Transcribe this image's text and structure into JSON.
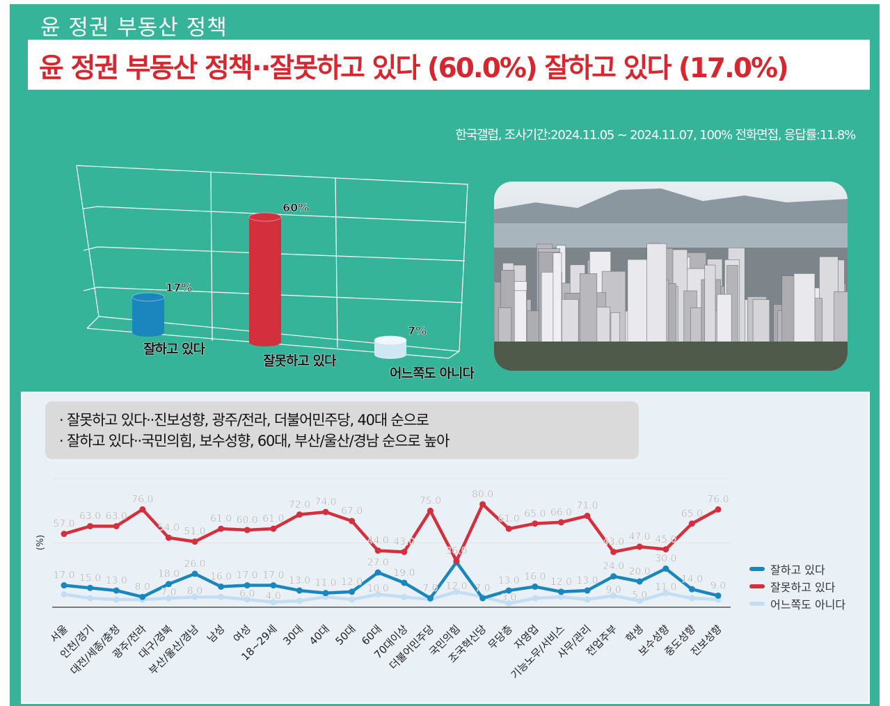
{
  "header": {
    "kicker": "윤 정권 부동산 정책",
    "headline": "윤 정권 부동산 정책··잘못하고 있다 (60.0%) 잘하고 있다 (17.0%)",
    "source": "한국갤럽, 조사기간:2024.11.05 ~ 2024.11.07, 100% 전화면접, 응답률:11.8%"
  },
  "summary": {
    "line1": "· 잘못하고 있다··진보성향, 광주/전라, 더불어민주당, 40대 순으로",
    "line2": "· 잘하고 있다··국민의힘, 보수성향, 60대, 부산/울산/경남 순으로 높아"
  },
  "colors": {
    "good": "#1a86bd",
    "bad": "#d32f3c",
    "neither": "#c3ddf2",
    "bg": "#35b49a"
  },
  "chart_data": [
    {
      "type": "bar",
      "title": "",
      "categories": [
        "잘하고 있다",
        "잘못하고 있다",
        "어느쪽도 아니다"
      ],
      "values": [
        17,
        60,
        7
      ],
      "value_labels": [
        "17%",
        "60%",
        "7%"
      ],
      "colors": [
        "#1a86bd",
        "#d32f3c",
        "#cfe6f5"
      ]
    },
    {
      "type": "line",
      "ylabel": "(%)",
      "ylim": [
        0,
        100
      ],
      "legend": "right",
      "categories": [
        "서울",
        "인천/경기",
        "대전/세종/충청",
        "광주/전라",
        "대구/경북",
        "부산/울산/경남",
        "남성",
        "여성",
        "18~29세",
        "30대",
        "40대",
        "50대",
        "60대",
        "70대이상",
        "더불어민주당",
        "국민의힘",
        "조국혁신당",
        "무당층",
        "자영업",
        "기능노무/서비스",
        "사무/관리",
        "전업주부",
        "학생",
        "보수성향",
        "중도성향",
        "진보성향"
      ],
      "series": [
        {
          "name": "잘하고 있다",
          "color": "#1a86bd",
          "values": [
            17,
            15,
            13,
            8,
            18,
            26,
            16,
            17,
            17,
            13,
            11,
            12,
            27,
            19,
            7,
            35,
            7,
            13,
            16,
            12,
            13,
            24,
            20,
            30,
            14,
            9
          ],
          "labels": [
            "17.0",
            "15.0",
            "13.0",
            "8.0",
            "18.0",
            "26.0",
            "16.0",
            "17.0",
            "17.0",
            "13.0",
            "11.0",
            "12.0",
            "27.0",
            "19.0",
            "7.0",
            "",
            "7.0",
            "13.0",
            "16.0",
            "12.0",
            "13.0",
            "24.0",
            "20.0",
            "30.0",
            "14.0",
            "9.0"
          ]
        },
        {
          "name": "잘못하고 있다",
          "color": "#d32f3c",
          "values": [
            57,
            63,
            63,
            76,
            54,
            51,
            61,
            60,
            61,
            72,
            74,
            67,
            44,
            43,
            75,
            36,
            80,
            61,
            65,
            66,
            71,
            43,
            47,
            45,
            65,
            76
          ],
          "labels": [
            "57.0",
            "63.0",
            "63.0",
            "76.0",
            "54.0",
            "51.0",
            "61.0",
            "60.0",
            "61.0",
            "72.0",
            "74.0",
            "67.0",
            "44.0",
            "43.0",
            "75.0",
            "36.0",
            "80.0",
            "61.0",
            "65.0",
            "66.0",
            "71.0",
            "43.0",
            "47.0",
            "45.0",
            "65.0",
            "76.0"
          ]
        },
        {
          "name": "어느쪽도 아니다",
          "color": "#c3ddf2",
          "values": [
            10,
            7,
            6,
            6,
            7,
            8,
            8,
            6,
            4,
            5,
            8,
            6,
            10,
            8,
            6,
            12,
            8,
            3,
            7,
            8,
            6,
            9,
            5,
            11,
            7,
            6
          ],
          "labels": [
            "",
            "",
            "",
            "",
            "7.0",
            "8.0",
            "",
            "6.0",
            "4.0",
            "",
            "",
            "",
            "10.0",
            "",
            "",
            "12.0",
            "",
            "3.0",
            "",
            "",
            "",
            "9.0",
            "5.0",
            "11.0",
            "",
            ""
          ]
        }
      ]
    }
  ]
}
